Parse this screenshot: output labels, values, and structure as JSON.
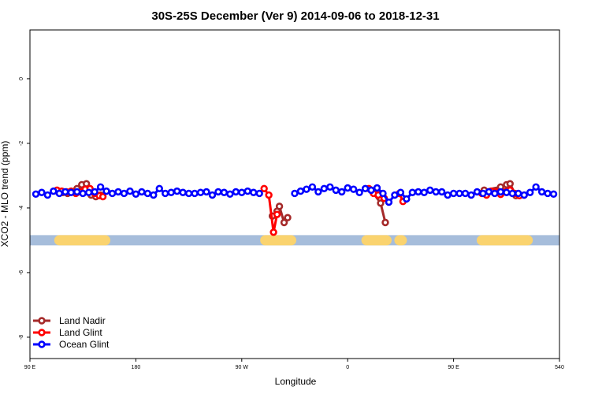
{
  "chart_data": {
    "type": "line",
    "title": "30S-25S December (Ver 9)   2014-09-06 to 2018-12-31",
    "x_label": "Longitude",
    "y_label": "XCO2 - MLO trend (ppm)",
    "xlim": [
      90,
      540
    ],
    "ylim": [
      -8.66,
      1.51
    ],
    "xticks": [
      {
        "value": 90,
        "label": "90 E"
      },
      180,
      {
        "value": 270,
        "label": "90 W"
      },
      {
        "value": 360,
        "label": "0"
      },
      {
        "value": 450,
        "label": "90 E"
      },
      540
    ],
    "yticks": [
      0,
      -2,
      -4,
      -6,
      -8
    ],
    "legend": "bottom-left",
    "land_mask": {
      "y": -5,
      "ocean_color": "#a6bddb",
      "land_color": "#fad36f",
      "segments": [
        [
          115,
          154
        ],
        [
          290,
          312
        ],
        [
          376,
          393
        ],
        [
          404,
          406
        ],
        [
          474,
          513
        ]
      ]
    },
    "series": [
      {
        "name": "Land Nadir",
        "color": "#a52a2a",
        "x": [
          114,
          118,
          122,
          126,
          130,
          134,
          138,
          142,
          146,
          150,
          200,
          296,
          300,
          302,
          306,
          309,
          340,
          380,
          388,
          392,
          450,
          476,
          490,
          495,
          498,
          503
        ],
        "values": [
          -3.5,
          -3.52,
          -3.55,
          -3.5,
          -3.4,
          -3.28,
          -3.25,
          -3.6,
          -3.65,
          -3.6,
          null,
          -4.25,
          -4.1,
          -3.95,
          -4.45,
          -4.3,
          null,
          -3.45,
          -3.85,
          -4.45,
          null,
          -3.45,
          -3.35,
          -3.28,
          -3.25,
          -3.62
        ]
      },
      {
        "name": "Land Glint",
        "color": "#ff0000",
        "x": [
          113,
          117,
          121,
          125,
          129,
          133,
          137,
          141,
          145,
          149,
          152,
          200,
          289,
          293,
          297,
          300,
          340,
          378,
          382,
          386,
          391,
          398,
          404,
          407,
          450,
          474,
          478,
          482,
          486,
          490,
          494,
          498,
          502,
          506,
          510
        ],
        "values": [
          -3.45,
          -3.48,
          -3.5,
          -3.48,
          -3.55,
          -3.5,
          -3.42,
          -3.4,
          -3.55,
          -3.62,
          -3.65,
          null,
          -3.4,
          -3.6,
          -4.75,
          -4.2,
          null,
          -3.4,
          -3.55,
          -3.6,
          -3.7,
          null,
          -3.55,
          -3.8,
          null,
          -3.55,
          -3.6,
          -3.48,
          -3.5,
          -3.58,
          -3.5,
          -3.45,
          -3.55,
          -3.62,
          -3.6
        ]
      },
      {
        "name": "Ocean Glint",
        "color": "#0000ff",
        "x": [
          95,
          100,
          105,
          110,
          115,
          120,
          125,
          130,
          135,
          140,
          145,
          150,
          155,
          160,
          165,
          170,
          175,
          180,
          185,
          190,
          195,
          200,
          205,
          210,
          215,
          220,
          225,
          230,
          235,
          240,
          245,
          250,
          255,
          260,
          265,
          270,
          275,
          280,
          285,
          300,
          315,
          320,
          325,
          330,
          335,
          340,
          345,
          350,
          355,
          360,
          365,
          370,
          375,
          380,
          385,
          390,
          395,
          400,
          405,
          410,
          415,
          420,
          425,
          430,
          435,
          440,
          445,
          450,
          455,
          460,
          465,
          470,
          475,
          480,
          485,
          490,
          495,
          500,
          505,
          510,
          515,
          520,
          525,
          530,
          535
        ],
        "values": [
          -3.57,
          -3.52,
          -3.6,
          -3.48,
          -3.55,
          -3.5,
          -3.52,
          -3.5,
          -3.55,
          -3.52,
          -3.5,
          -3.35,
          -3.48,
          -3.55,
          -3.5,
          -3.55,
          -3.48,
          -3.57,
          -3.5,
          -3.55,
          -3.6,
          -3.4,
          -3.55,
          -3.52,
          -3.48,
          -3.52,
          -3.55,
          -3.55,
          -3.52,
          -3.5,
          -3.6,
          -3.5,
          -3.52,
          -3.57,
          -3.5,
          -3.52,
          -3.48,
          -3.52,
          -3.55,
          null,
          -3.55,
          -3.48,
          -3.42,
          -3.35,
          -3.5,
          -3.4,
          -3.35,
          -3.45,
          -3.5,
          -3.38,
          -3.42,
          -3.52,
          -3.4,
          -3.45,
          -3.38,
          -3.55,
          -3.82,
          -3.6,
          -3.52,
          -3.72,
          -3.52,
          -3.5,
          -3.52,
          -3.45,
          -3.5,
          -3.5,
          -3.6,
          -3.55,
          -3.55,
          -3.55,
          -3.6,
          -3.5,
          -3.55,
          -3.5,
          -3.55,
          -3.5,
          -3.52,
          -3.55,
          -3.55,
          -3.6,
          -3.52,
          -3.35,
          -3.5,
          -3.55,
          -3.57
        ]
      }
    ]
  }
}
